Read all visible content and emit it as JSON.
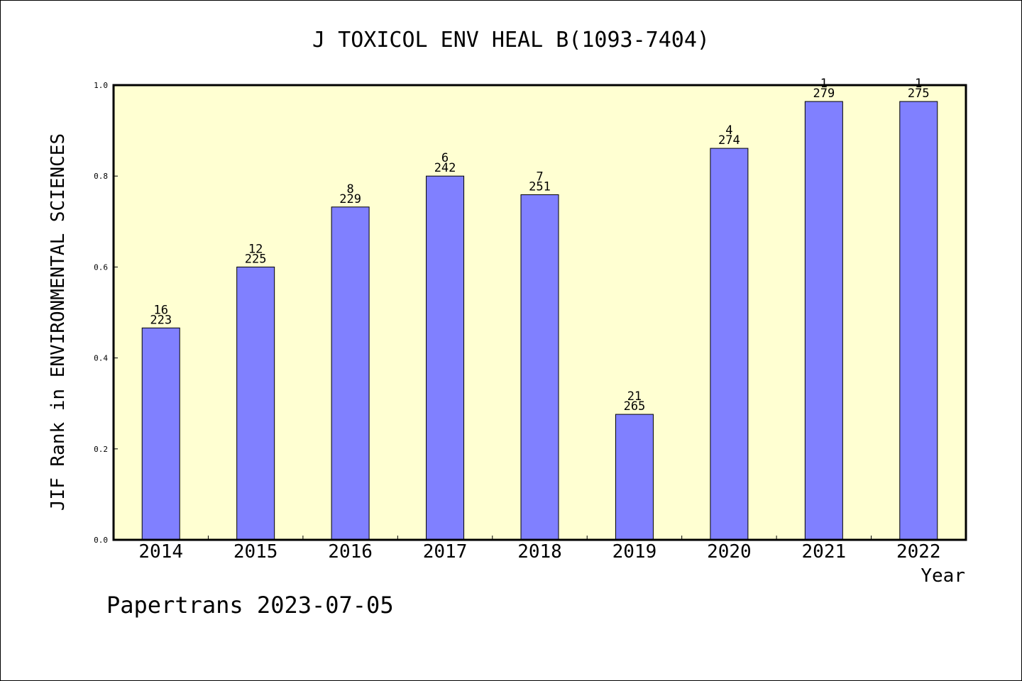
{
  "chart_data": {
    "type": "bar",
    "title": "J TOXICOL ENV HEAL B(1093-7404)",
    "xlabel": "Year",
    "ylabel": "JIF Rank in ENVIRONMENTAL SCIENCES",
    "ylim": [
      0,
      1.0
    ],
    "yticks": [
      "0.0",
      "0.2",
      "0.4",
      "0.6",
      "0.8",
      "1.0"
    ],
    "categories": [
      "2014",
      "2015",
      "2016",
      "2017",
      "2018",
      "2019",
      "2020",
      "2021",
      "2022"
    ],
    "values": [
      0.466,
      0.6,
      0.732,
      0.8,
      0.759,
      0.276,
      0.861,
      0.964,
      0.964
    ],
    "rank_labels": [
      "16",
      "12",
      "8",
      "6",
      "7",
      "21",
      "4",
      "1",
      "1"
    ],
    "total_labels": [
      "223",
      "225",
      "229",
      "242",
      "251",
      "265",
      "274",
      "279",
      "275"
    ],
    "grid": false,
    "colors": {
      "plot_background": "#ffffd2",
      "bar_fill": "#8080ff",
      "bar_stroke": "#000000"
    }
  },
  "footer": {
    "text": "Papertrans 2023-07-05"
  }
}
